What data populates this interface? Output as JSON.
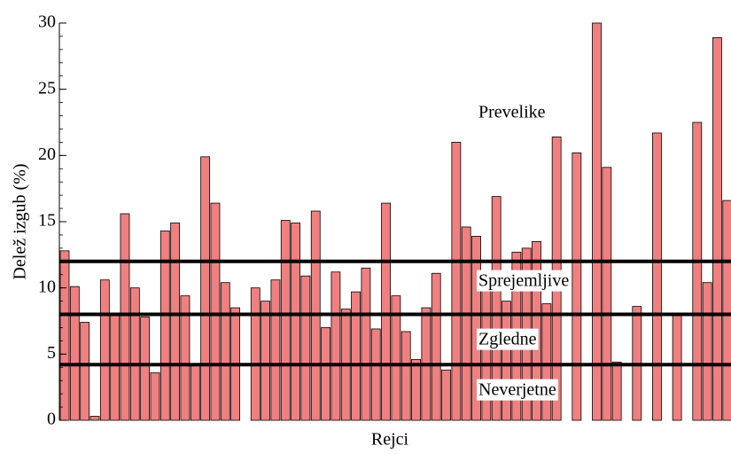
{
  "chart_data": {
    "type": "bar",
    "x_label": "Rejci",
    "y_label": "Delež izgub (%)",
    "values": [
      12.8,
      10.1,
      7.4,
      0.3,
      10.6,
      7.9,
      15.6,
      10.0,
      7.8,
      3.6,
      14.3,
      14.9,
      9.4,
      4.2,
      19.9,
      16.4,
      10.4,
      8.5,
      0,
      10.0,
      9.0,
      10.6,
      15.1,
      14.9,
      10.9,
      15.8,
      7.0,
      11.2,
      8.4,
      9.7,
      11.5,
      6.9,
      16.4,
      9.4,
      6.7,
      4.6,
      8.5,
      11.1,
      3.8,
      21.0,
      14.6,
      13.9,
      10.0,
      16.9,
      9.0,
      12.7,
      13.0,
      13.5,
      8.8,
      21.4,
      0,
      20.2,
      0,
      30.0,
      19.1,
      4.4,
      0,
      8.6,
      0,
      21.7,
      0,
      7.9,
      0,
      22.5,
      10.4,
      28.9,
      16.6
    ],
    "color": "#f08080",
    "ylim": [
      0,
      30
    ],
    "yticks": [
      0,
      5,
      10,
      15,
      20,
      25,
      30
    ],
    "thresholds": [
      12,
      8,
      4.2
    ],
    "annotations": [
      "Prevelike",
      "Sprejemljive",
      "Zgledne",
      "Neverjetne"
    ]
  }
}
